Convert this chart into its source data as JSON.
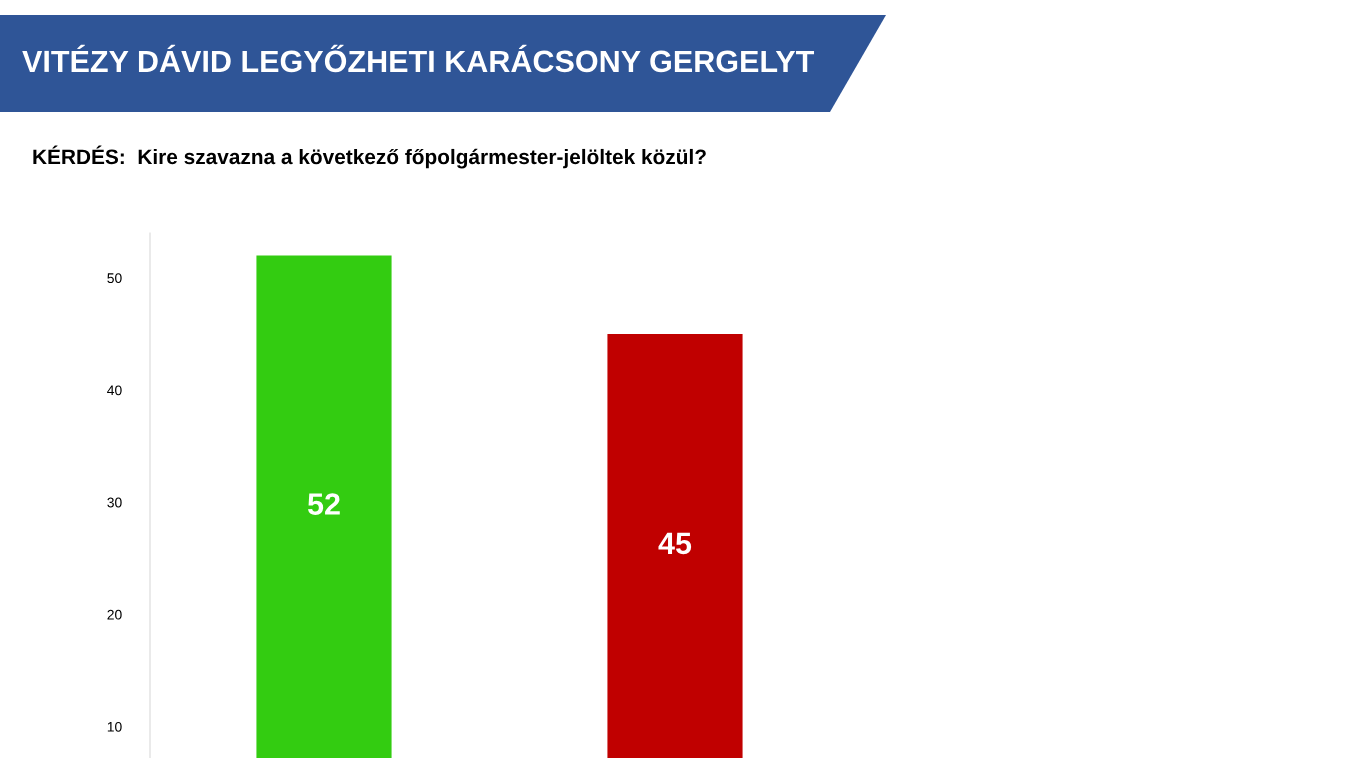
{
  "chart_data": {
    "type": "bar",
    "title": "VITÉZY DÁVID LEGYŐZHETI KARÁCSONY GERGELYT",
    "subtitle": "KÉRDÉS:  Kire szavazna a következő főpolgármester-jelöltek közül?",
    "categories": [
      null,
      null
    ],
    "values": [
      52,
      45
    ],
    "colors": [
      "#33cc11",
      "#c00000"
    ],
    "ylim": [
      7.2,
      54
    ],
    "yticks": [
      10,
      20,
      30,
      40,
      50
    ],
    "data_labels": true,
    "grid": false,
    "legend": false
  }
}
